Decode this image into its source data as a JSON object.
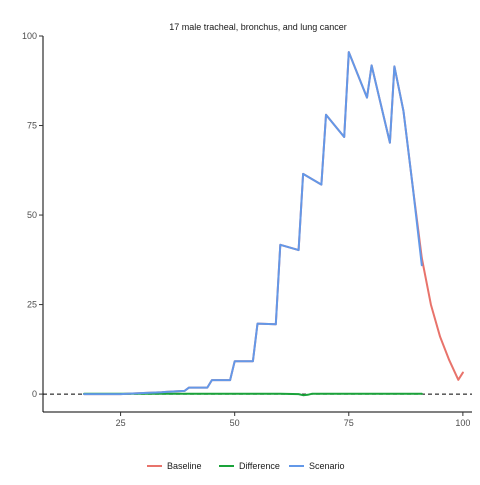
{
  "chart_data": {
    "type": "line",
    "title": "17 male tracheal, bronchus, and lung cancer",
    "xlabel": "",
    "ylabel": "",
    "xlim": [
      8,
      102
    ],
    "ylim": [
      -5,
      100
    ],
    "x_ticks": [
      25,
      50,
      75,
      100
    ],
    "y_ticks": [
      0,
      25,
      50,
      75,
      100
    ],
    "grid": false,
    "legend_position": "bottom",
    "reference_line": {
      "y": 0,
      "style": "dashed",
      "color": "#000000"
    },
    "series": [
      {
        "name": "Baseline",
        "color": "#E8736B",
        "points": [
          [
            17,
            0
          ],
          [
            20,
            0
          ],
          [
            25,
            0
          ],
          [
            30,
            0.3
          ],
          [
            34,
            0.5
          ],
          [
            35,
            0.6
          ],
          [
            39,
            0.9
          ],
          [
            40,
            1.8
          ],
          [
            44,
            1.8
          ],
          [
            45,
            3.9
          ],
          [
            49,
            3.9
          ],
          [
            50,
            9.2
          ],
          [
            54,
            9.2
          ],
          [
            55,
            19.7
          ],
          [
            59,
            19.5
          ],
          [
            60,
            41.7
          ],
          [
            64,
            40.2
          ],
          [
            65,
            61.5
          ],
          [
            69,
            58.5
          ],
          [
            70,
            78
          ],
          [
            74,
            71.8
          ],
          [
            75,
            95.5
          ],
          [
            79,
            82.8
          ],
          [
            80,
            91.8
          ],
          [
            84,
            70.2
          ],
          [
            85,
            91.5
          ],
          [
            87,
            79
          ],
          [
            89,
            58
          ],
          [
            91,
            38
          ],
          [
            93,
            25
          ],
          [
            95,
            16
          ],
          [
            97,
            9.5
          ],
          [
            99,
            4
          ],
          [
            100,
            6
          ]
        ]
      },
      {
        "name": "Difference",
        "color": "#1AA33A",
        "points": [
          [
            17,
            0.1
          ],
          [
            25,
            0.1
          ],
          [
            35,
            0.1
          ],
          [
            45,
            0.1
          ],
          [
            55,
            0.1
          ],
          [
            60,
            0.1
          ],
          [
            64,
            0
          ],
          [
            65,
            -0.3
          ],
          [
            66,
            -0.2
          ],
          [
            67,
            0.1
          ],
          [
            75,
            0.1
          ],
          [
            85,
            0.1
          ],
          [
            91,
            0.1
          ]
        ]
      },
      {
        "name": "Scenario",
        "color": "#6398E8",
        "points": [
          [
            17,
            0
          ],
          [
            20,
            0
          ],
          [
            25,
            0
          ],
          [
            30,
            0.3
          ],
          [
            34,
            0.5
          ],
          [
            35,
            0.6
          ],
          [
            39,
            0.9
          ],
          [
            40,
            1.8
          ],
          [
            44,
            1.8
          ],
          [
            45,
            3.9
          ],
          [
            49,
            3.9
          ],
          [
            50,
            9.2
          ],
          [
            54,
            9.2
          ],
          [
            55,
            19.7
          ],
          [
            59,
            19.5
          ],
          [
            60,
            41.7
          ],
          [
            64,
            40.2
          ],
          [
            65,
            61.5
          ],
          [
            69,
            58.5
          ],
          [
            70,
            78
          ],
          [
            74,
            71.8
          ],
          [
            75,
            95.5
          ],
          [
            79,
            82.8
          ],
          [
            80,
            91.8
          ],
          [
            84,
            70.2
          ],
          [
            85,
            91.5
          ],
          [
            87,
            79
          ],
          [
            89,
            58
          ],
          [
            91,
            36
          ]
        ]
      }
    ]
  }
}
